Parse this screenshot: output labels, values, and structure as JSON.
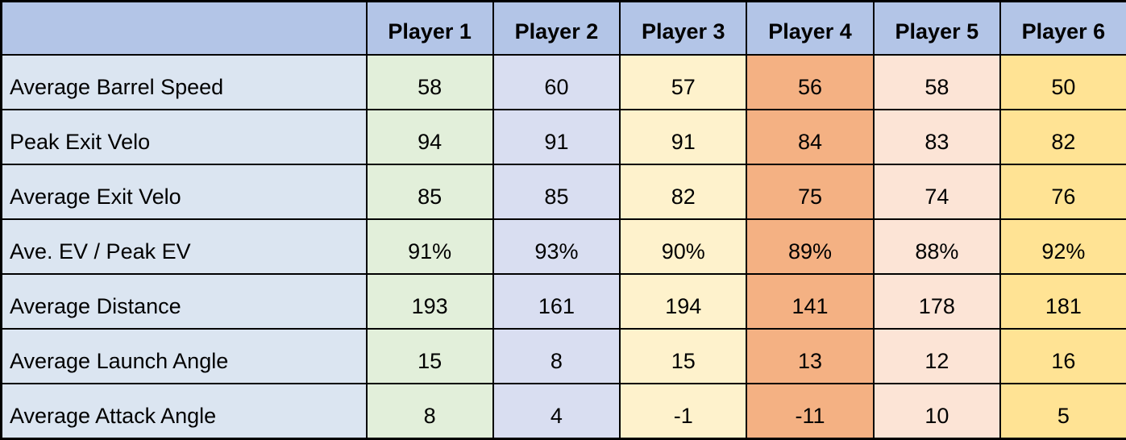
{
  "table": {
    "header": {
      "corner": "",
      "columns": [
        "Player 1",
        "Player 2",
        "Player 3",
        "Player 4",
        "Player 5",
        "Player 6"
      ]
    },
    "rows": [
      {
        "label": "Average Barrel Speed",
        "values": [
          "58",
          "60",
          "57",
          "56",
          "58",
          "50"
        ]
      },
      {
        "label": "Peak Exit Velo",
        "values": [
          "94",
          "91",
          "91",
          "84",
          "83",
          "82"
        ]
      },
      {
        "label": "Average Exit Velo",
        "values": [
          "85",
          "85",
          "82",
          "75",
          "74",
          "76"
        ]
      },
      {
        "label": "Ave. EV / Peak EV",
        "values": [
          "91%",
          "93%",
          "90%",
          "89%",
          "88%",
          "92%"
        ]
      },
      {
        "label": "Average Distance",
        "values": [
          "193",
          "161",
          "194",
          "141",
          "178",
          "181"
        ]
      },
      {
        "label": "Average Launch Angle",
        "values": [
          "15",
          "8",
          "15",
          "13",
          "12",
          "16"
        ]
      },
      {
        "label": "Average Attack Angle",
        "values": [
          "8",
          "4",
          "-1",
          "-11",
          "10",
          "5"
        ]
      }
    ],
    "colors": {
      "header_bg": "#b3c5e7",
      "label_col_bg": "#dbe5f1",
      "column_bgs": [
        "#e2efda",
        "#d9def1",
        "#fef2cc",
        "#f4b183",
        "#fce4d6",
        "#ffe394"
      ],
      "border": "#000000",
      "text": "#000000"
    }
  }
}
